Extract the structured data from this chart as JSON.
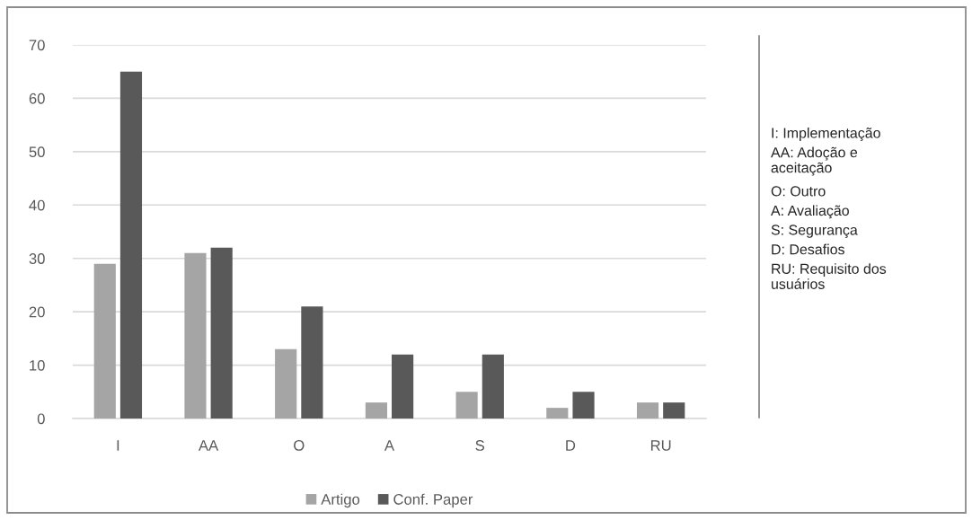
{
  "chart_data": {
    "type": "bar",
    "categories": [
      "I",
      "AA",
      "O",
      "A",
      "S",
      "D",
      "RU"
    ],
    "series": [
      {
        "name": "Artigo",
        "color": "#a5a5a5",
        "values": [
          29,
          31,
          13,
          3,
          5,
          2,
          3
        ]
      },
      {
        "name": "Conf. Paper",
        "color": "#595959",
        "values": [
          65,
          32,
          21,
          12,
          12,
          5,
          3
        ]
      }
    ],
    "ylim": [
      0,
      70
    ],
    "yticks": [
      0,
      10,
      20,
      30,
      40,
      50,
      60,
      70
    ],
    "grid": "y",
    "legend": "bottom",
    "annotations": [
      "I: Implementação",
      "AA: Adoção e\naceitação",
      "O: Outro",
      "A: Avaliação",
      "S: Segurança",
      "D: Desafios",
      "RU: Requisito dos\nusuários"
    ]
  }
}
